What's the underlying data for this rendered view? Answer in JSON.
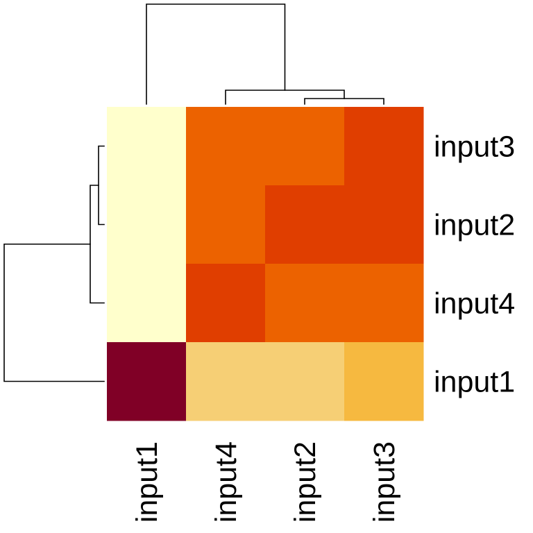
{
  "chart_data": {
    "type": "heatmap",
    "title": "",
    "xlabel": "",
    "ylabel": "",
    "columns": [
      "input1",
      "input4",
      "input2",
      "input3"
    ],
    "rows": [
      "input3",
      "input2",
      "input4",
      "input1"
    ],
    "values": [
      [
        0.1,
        0.7,
        0.7,
        0.8
      ],
      [
        0.1,
        0.7,
        0.8,
        0.8
      ],
      [
        0.1,
        0.8,
        0.7,
        0.7
      ],
      [
        1.0,
        0.3,
        0.3,
        0.45
      ]
    ],
    "colors": [
      [
        "#ffffcc",
        "#ec6200",
        "#ec6200",
        "#e03e00"
      ],
      [
        "#ffffcc",
        "#ec6200",
        "#e03e00",
        "#e03e00"
      ],
      [
        "#ffffcc",
        "#e03e00",
        "#ec6200",
        "#ec6200"
      ],
      [
        "#800026",
        "#f6cf75",
        "#f6cf75",
        "#f6b940"
      ]
    ],
    "column_dendrogram": "((input1),(input4,(input2,input3)))",
    "row_dendrogram": "(((input3,input2),input4),input1)",
    "legend": "none"
  }
}
